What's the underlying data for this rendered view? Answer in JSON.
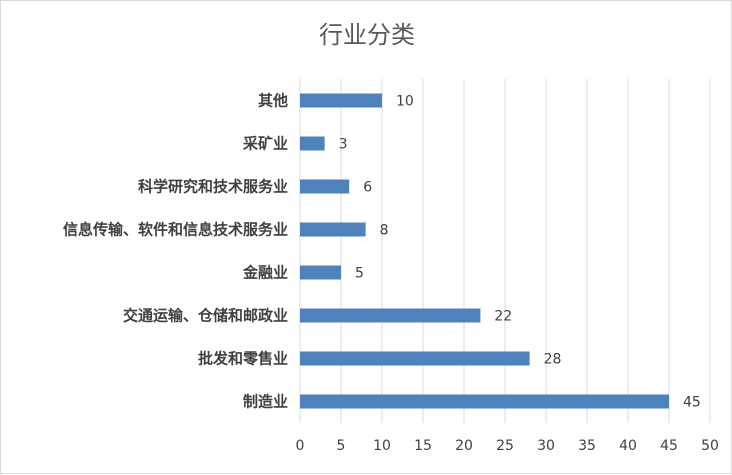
{
  "chart_data": {
    "type": "bar",
    "orientation": "horizontal",
    "title": "行业分类",
    "categories": [
      "其他",
      "采矿业",
      "科学研究和技术服务业",
      "信息传输、软件和信息技术服务业",
      "金融业",
      "交通运输、仓储和邮政业",
      "批发和零售业",
      "制造业"
    ],
    "values": [
      10,
      3,
      6,
      8,
      5,
      22,
      28,
      45
    ],
    "xlim": [
      0,
      50
    ],
    "xticks": [
      0,
      5,
      10,
      15,
      20,
      25,
      30,
      35,
      40,
      45,
      50
    ],
    "grid": true,
    "data_labels": true,
    "bar_color": "#4f81bd",
    "grid_color": "#d9d9d9"
  }
}
